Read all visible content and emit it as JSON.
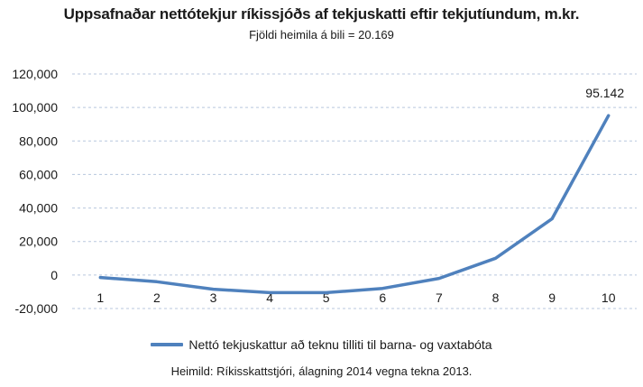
{
  "chart_data": {
    "type": "line",
    "title": "Uppsafnaðar nettótekjur ríkissjóðs af tekjuskatti eftir tekjutíundum,  m.kr.",
    "subtitle": "Fjöldi heimila á bili = 20.169",
    "categories": [
      "1",
      "2",
      "3",
      "4",
      "5",
      "6",
      "7",
      "8",
      "9",
      "10"
    ],
    "series": [
      {
        "name": "Nettó tekjuskattur að teknu tilliti til barna- og vaxtabóta",
        "values": [
          -1500,
          -4000,
          -8500,
          -10500,
          -10500,
          -8000,
          -2000,
          10000,
          33500,
          95142
        ],
        "color": "#4f81bd"
      }
    ],
    "ylim": [
      -20000,
      120000
    ],
    "yticks": [
      -20000,
      0,
      20000,
      40000,
      60000,
      80000,
      100000,
      120000
    ],
    "ytick_labels": [
      "-20,000",
      "0",
      "20,000",
      "40,000",
      "60,000",
      "80,000",
      "100,000",
      "120,000"
    ],
    "data_labels": [
      {
        "index": 9,
        "text": "95.142"
      }
    ],
    "grid": true,
    "legend": "bottom",
    "source": "Heimild: Ríkisskattstjóri, álagning 2014 vegna tekna 2013."
  }
}
